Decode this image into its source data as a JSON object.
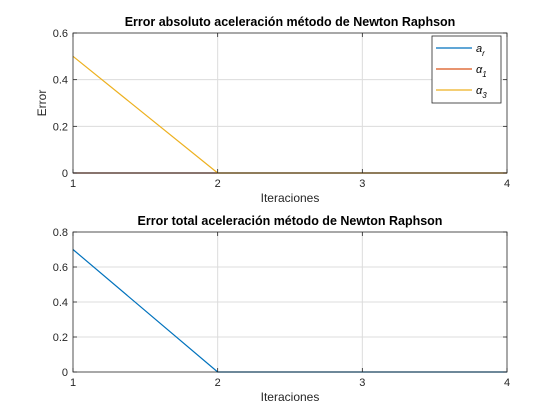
{
  "chart_data": [
    {
      "type": "line",
      "title": "Error absoluto aceleración método de Newton Raphson",
      "xlabel": "Iteraciones",
      "ylabel": "Error",
      "x": [
        1,
        2,
        3,
        4
      ],
      "xlim": [
        1,
        4
      ],
      "ylim": [
        0,
        0.6
      ],
      "xticks": [
        "1",
        "2",
        "3",
        "4"
      ],
      "yticks": [
        "0",
        "0.2",
        "0.4",
        "0.6"
      ],
      "grid": true,
      "legend_position": "top-right",
      "series": [
        {
          "name": "a_r",
          "name_main": "a",
          "name_sub": "r",
          "color": "#0072BD",
          "values": [
            0.0,
            0.0,
            0.0,
            0.0
          ]
        },
        {
          "name": "α_1",
          "name_main": "α",
          "name_sub": "1",
          "color": "#D95319",
          "values": [
            0.0,
            0.0,
            0.0,
            0.0
          ]
        },
        {
          "name": "α_3",
          "name_main": "α",
          "name_sub": "3",
          "color": "#EDB120",
          "values": [
            0.5,
            0.0,
            0.0,
            0.0
          ]
        }
      ]
    },
    {
      "type": "line",
      "title": "Error total aceleración método de Newton Raphson",
      "xlabel": "Iteraciones",
      "ylabel": "",
      "x": [
        1,
        2,
        3,
        4
      ],
      "xlim": [
        1,
        4
      ],
      "ylim": [
        0,
        0.8
      ],
      "xticks": [
        "1",
        "2",
        "3",
        "4"
      ],
      "yticks": [
        "0",
        "0.2",
        "0.4",
        "0.6",
        "0.8"
      ],
      "grid": true,
      "series": [
        {
          "color": "#0072BD",
          "values": [
            0.7,
            0.0,
            0.0,
            0.0
          ]
        }
      ]
    }
  ]
}
